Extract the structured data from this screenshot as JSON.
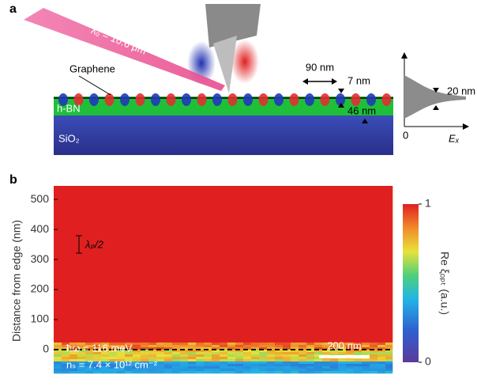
{
  "panel_a": {
    "letter": "a",
    "beam_label": "λ₀ = 10.6 μm",
    "graphene": "Graphene",
    "hbn": "h-BN",
    "sio2": "SiO₂",
    "period": "90 nm",
    "gap": "7 nm",
    "thickness": "46 nm",
    "inset_width": "20 nm",
    "inset_origin": "0",
    "inset_axis": "Eₓ"
  },
  "chart_data": {
    "type": "heatmap",
    "letter": "b",
    "ylabel": "Distance from edge (nm)",
    "ylim": [
      -79,
      545
    ],
    "yticks": [
      0,
      100,
      200,
      300,
      400,
      500
    ],
    "wavelength_marker": "λₚ/2",
    "energy": "ħω = 116 meV",
    "density": "nₛ = 7.4 × 10¹² cm⁻²",
    "scale_bar": "200 nm",
    "colorbar": {
      "label": "Re ξₒₚₜ (a.u.)",
      "lim": [
        0,
        1
      ],
      "ticks": [
        0,
        1
      ]
    }
  }
}
